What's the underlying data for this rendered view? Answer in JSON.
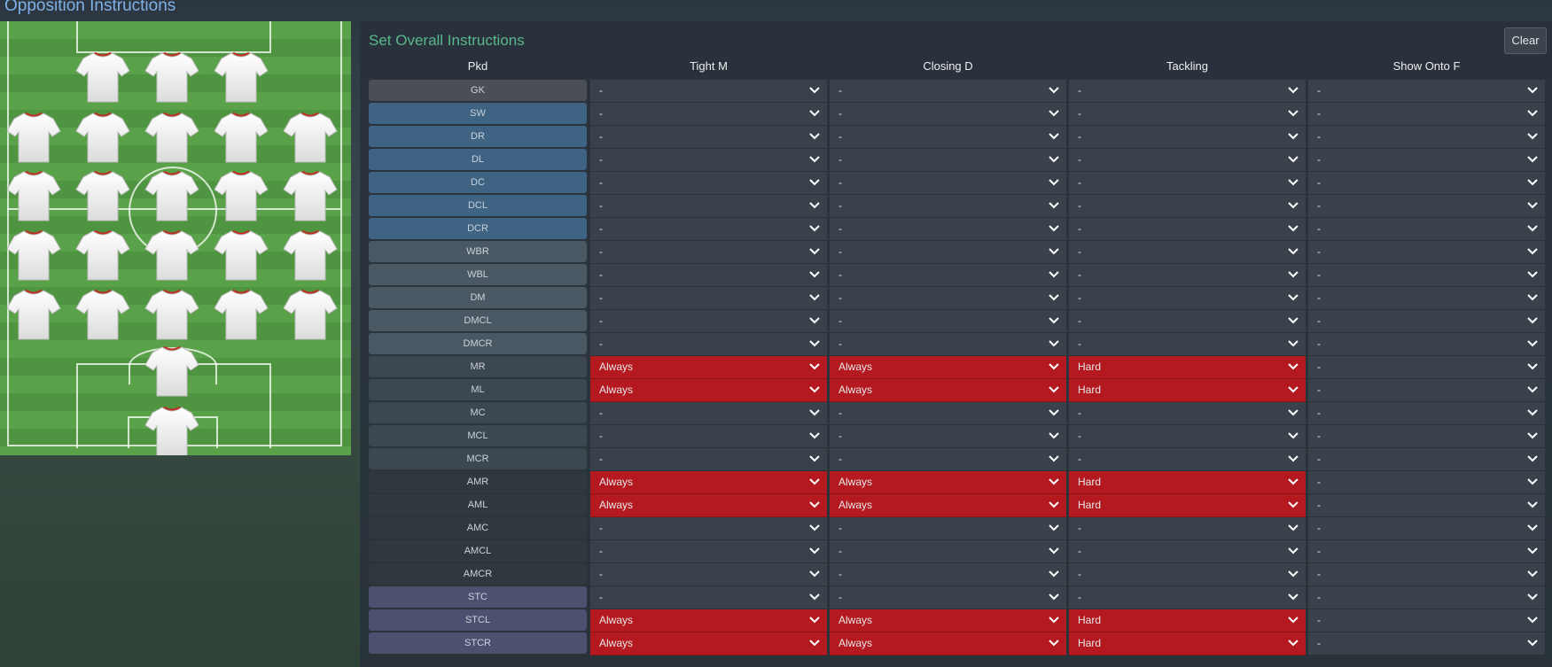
{
  "page_title": "Opposition Instructions",
  "panel_title": "Set Overall Instructions",
  "clear_label": "Clear",
  "headers": [
    "Pkd",
    "Tight M",
    "Closing D",
    "Tackling",
    "Show Onto F"
  ],
  "rows": [
    {
      "pos": "GK",
      "group": "gk",
      "values": [
        "-",
        "-",
        "-",
        "-"
      ]
    },
    {
      "pos": "SW",
      "group": "def",
      "values": [
        "-",
        "-",
        "-",
        "-"
      ]
    },
    {
      "pos": "DR",
      "group": "def",
      "values": [
        "-",
        "-",
        "-",
        "-"
      ]
    },
    {
      "pos": "DL",
      "group": "def",
      "values": [
        "-",
        "-",
        "-",
        "-"
      ]
    },
    {
      "pos": "DC",
      "group": "def",
      "values": [
        "-",
        "-",
        "-",
        "-"
      ]
    },
    {
      "pos": "DCL",
      "group": "def",
      "values": [
        "-",
        "-",
        "-",
        "-"
      ]
    },
    {
      "pos": "DCR",
      "group": "def",
      "values": [
        "-",
        "-",
        "-",
        "-"
      ]
    },
    {
      "pos": "WBR",
      "group": "dm",
      "values": [
        "-",
        "-",
        "-",
        "-"
      ]
    },
    {
      "pos": "WBL",
      "group": "dm",
      "values": [
        "-",
        "-",
        "-",
        "-"
      ]
    },
    {
      "pos": "DM",
      "group": "dm",
      "values": [
        "-",
        "-",
        "-",
        "-"
      ]
    },
    {
      "pos": "DMCL",
      "group": "dm",
      "values": [
        "-",
        "-",
        "-",
        "-"
      ]
    },
    {
      "pos": "DMCR",
      "group": "dm",
      "values": [
        "-",
        "-",
        "-",
        "-"
      ]
    },
    {
      "pos": "MR",
      "group": "mid",
      "values": [
        "Always",
        "Always",
        "Hard",
        "-"
      ]
    },
    {
      "pos": "ML",
      "group": "mid",
      "values": [
        "Always",
        "Always",
        "Hard",
        "-"
      ]
    },
    {
      "pos": "MC",
      "group": "mid",
      "values": [
        "-",
        "-",
        "-",
        "-"
      ]
    },
    {
      "pos": "MCL",
      "group": "mid",
      "values": [
        "-",
        "-",
        "-",
        "-"
      ]
    },
    {
      "pos": "MCR",
      "group": "mid",
      "values": [
        "-",
        "-",
        "-",
        "-"
      ]
    },
    {
      "pos": "AMR",
      "group": "am",
      "values": [
        "Always",
        "Always",
        "Hard",
        "-"
      ]
    },
    {
      "pos": "AML",
      "group": "am",
      "values": [
        "Always",
        "Always",
        "Hard",
        "-"
      ]
    },
    {
      "pos": "AMC",
      "group": "am",
      "values": [
        "-",
        "-",
        "-",
        "-"
      ]
    },
    {
      "pos": "AMCL",
      "group": "am",
      "values": [
        "-",
        "-",
        "-",
        "-"
      ]
    },
    {
      "pos": "AMCR",
      "group": "am",
      "values": [
        "-",
        "-",
        "-",
        "-"
      ]
    },
    {
      "pos": "STC",
      "group": "st",
      "values": [
        "-",
        "-",
        "-",
        "-"
      ]
    },
    {
      "pos": "STCL",
      "group": "st",
      "values": [
        "Always",
        "Always",
        "Hard",
        "-"
      ]
    },
    {
      "pos": "STCR",
      "group": "st",
      "values": [
        "Always",
        "Always",
        "Hard",
        "-"
      ]
    }
  ],
  "colors": {
    "gk": "#4b4f55",
    "def": "#3e6383",
    "dm": "#4a5863",
    "mid": "#3d474f",
    "am": "#2f383f",
    "st": "#4e5070",
    "highlight": "#b3191f"
  },
  "pitch": {
    "shirt_icon": "shirt-icon"
  }
}
